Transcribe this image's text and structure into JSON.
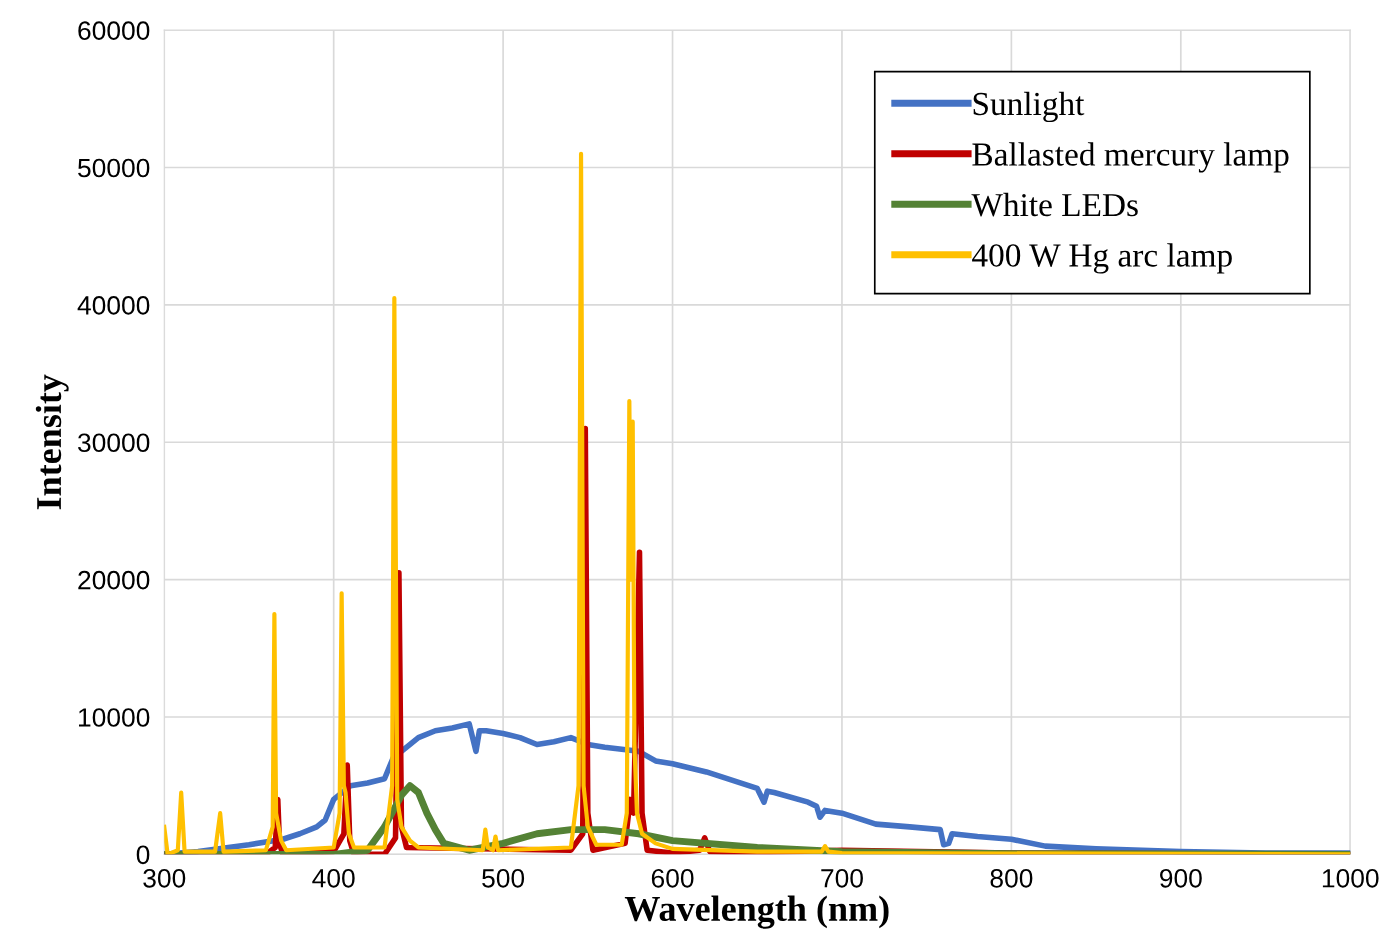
{
  "chart_data": {
    "type": "line",
    "xlabel": "Wavelength (nm)",
    "ylabel": "Intensity",
    "xlim": [
      300,
      1000
    ],
    "xticks": [
      300,
      400,
      500,
      600,
      700,
      800,
      900,
      1000
    ],
    "ylim": [
      0,
      60000
    ],
    "yticks": [
      0,
      10000,
      20000,
      30000,
      40000,
      50000,
      60000
    ],
    "grid": true,
    "legend": "top right",
    "marker": "none",
    "line_style": "solid",
    "series": [
      {
        "name": "Sunlight",
        "color": "#4472c4",
        "x": [
          300,
          320,
          350,
          370,
          380,
          390,
          395,
          400,
          410,
          420,
          430,
          435,
          440,
          450,
          460,
          470,
          480,
          484,
          486,
          490,
          500,
          510,
          520,
          530,
          540,
          550,
          560,
          580,
          590,
          600,
          620,
          640,
          650,
          654,
          656,
          660,
          680,
          685,
          687,
          690,
          700,
          720,
          740,
          758,
          760,
          763,
          765,
          780,
          800,
          820,
          850,
          900,
          950,
          1000
        ],
        "values": [
          0,
          200,
          700,
          1100,
          1500,
          2000,
          2500,
          4000,
          5000,
          5200,
          5500,
          7000,
          7500,
          8500,
          9000,
          9200,
          9500,
          7500,
          9000,
          9000,
          8800,
          8500,
          8000,
          8200,
          8500,
          8000,
          7800,
          7500,
          6800,
          6600,
          6000,
          5200,
          4800,
          3800,
          4600,
          4500,
          3800,
          3500,
          2700,
          3200,
          3000,
          2200,
          2000,
          1800,
          700,
          800,
          1500,
          1300,
          1100,
          600,
          400,
          200,
          100,
          100
        ]
      },
      {
        "name": "Ballasted mercury lamp",
        "color": "#c00000",
        "x": [
          300,
          360,
          365.5,
          367,
          368,
          370,
          400,
          406,
          408,
          409.5,
          412,
          430,
          436.5,
          438.5,
          440,
          443,
          540,
          547,
          548.5,
          550,
          553,
          572,
          575,
          577,
          580.5,
          582,
          585,
          600,
          616,
          619,
          622,
          640,
          700,
          800,
          1000
        ],
        "values": [
          0,
          0,
          500,
          4000,
          800,
          0,
          200,
          1500,
          6500,
          1000,
          0,
          0,
          1200,
          20500,
          2000,
          500,
          300,
          1500,
          31000,
          3000,
          300,
          800,
          4000,
          3000,
          22000,
          3000,
          300,
          100,
          300,
          1200,
          200,
          100,
          300,
          100,
          0
        ]
      },
      {
        "name": "White LEDs",
        "color": "#548235",
        "x": [
          300,
          400,
          420,
          430,
          440,
          445,
          450,
          455,
          460,
          465,
          480,
          500,
          520,
          540,
          560,
          580,
          600,
          650,
          700,
          800,
          1000
        ],
        "values": [
          0,
          0,
          300,
          2000,
          4300,
          5000,
          4500,
          3000,
          1800,
          800,
          300,
          800,
          1500,
          1800,
          1800,
          1500,
          1000,
          500,
          200,
          50,
          0
        ]
      },
      {
        "name": "400 W Hg arc lamp",
        "color": "#ffc000",
        "x": [
          300,
          302,
          308,
          310,
          312,
          330,
          333,
          335,
          360,
          364,
          365,
          366,
          369,
          372,
          400,
          403.5,
          404.7,
          406,
          407,
          409,
          412,
          430,
          434.5,
          435.8,
          437.5,
          440,
          445,
          450,
          488,
          489.5,
          491,
          494,
          495.5,
          497,
          540,
          544.5,
          546,
          547.5,
          550,
          555,
          570,
          573,
          574.5,
          575.5,
          576.5,
          577.5,
          579,
          582,
          590,
          600,
          650,
          688,
          690,
          692,
          700,
          1000
        ],
        "values": [
          2000,
          0,
          300,
          4500,
          200,
          200,
          3000,
          200,
          300,
          2000,
          17500,
          3000,
          1000,
          300,
          500,
          3000,
          19000,
          5000,
          4500,
          1500,
          500,
          500,
          5000,
          40500,
          4000,
          2000,
          1000,
          500,
          300,
          1800,
          500,
          300,
          1300,
          300,
          500,
          5000,
          51000,
          5000,
          2000,
          700,
          700,
          3000,
          33000,
          20000,
          31500,
          8000,
          3000,
          1500,
          800,
          400,
          200,
          200,
          600,
          200,
          100,
          0
        ]
      }
    ]
  }
}
